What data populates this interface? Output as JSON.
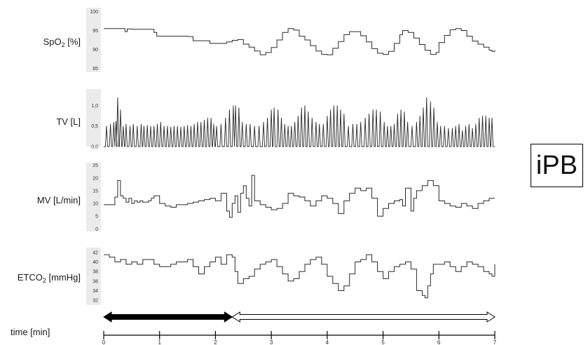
{
  "label_box": "iPB",
  "chart_data": {
    "type": "line",
    "xlabel": "time [min]",
    "xlim": [
      0,
      7
    ],
    "xticks": [
      0,
      1,
      2,
      3,
      4,
      5,
      6,
      7
    ],
    "phase_arrows": [
      {
        "from": 0,
        "to": 2.3,
        "fill": "#000000"
      },
      {
        "from": 2.3,
        "to": 7,
        "fill": "#ffffff"
      }
    ],
    "panels": [
      {
        "name": "spo2",
        "label": "SpO",
        "label_sub": "2",
        "label_rest": " [%]",
        "ylim": [
          84,
          101
        ],
        "yticks": [
          "100",
          "95",
          "90",
          "85"
        ],
        "ytick_values": [
          100,
          95,
          90,
          85
        ],
        "style": "step",
        "series": [
          {
            "x": [
              0,
              0.3,
              0.38,
              0.42,
              0.5,
              0.9,
              0.95,
              1.5,
              1.6,
              1.9,
              2.2,
              2.3,
              2.4,
              2.5,
              2.6,
              2.7,
              2.8,
              2.9,
              3.0,
              3.1,
              3.2,
              3.3,
              3.4,
              3.5,
              3.6,
              3.7,
              3.8,
              3.9,
              4.0,
              4.1,
              4.2,
              4.3,
              4.4,
              4.5,
              4.6,
              4.7,
              4.8,
              4.9,
              5.0,
              5.1,
              5.2,
              5.3,
              5.35,
              5.45,
              5.55,
              5.65,
              5.75,
              5.85,
              5.95,
              6.0,
              6.1,
              6.2,
              6.3,
              6.4,
              6.5,
              6.6,
              6.7,
              6.8,
              6.9,
              6.95,
              7.0
            ],
            "y": [
              95.5,
              95.5,
              94.7,
              95.4,
              95.3,
              94.5,
              93.5,
              93.4,
              92.3,
              91.6,
              92.0,
              92.4,
              92.6,
              91.4,
              90.6,
              89.6,
              88.6,
              89.2,
              90.5,
              92.5,
              94.5,
              95.5,
              95.1,
              93.5,
              92.5,
              91.0,
              89.6,
              88.7,
              88.6,
              90.3,
              92.1,
              93.9,
              94.7,
              94.7,
              93.6,
              92.0,
              90.2,
              89.0,
              88.7,
              89.5,
              91.6,
              93.9,
              95.0,
              94.5,
              93.0,
              91.3,
              89.8,
              88.7,
              89.2,
              91.8,
              93.7,
              95.2,
              95.5,
              95.0,
              93.5,
              92.2,
              91.4,
              90.6,
              89.8,
              89.5,
              89.8
            ]
          }
        ]
      },
      {
        "name": "tv",
        "label": "TV [L]",
        "ylim": [
          0,
          1.4
        ],
        "yticks": [
          "1,0",
          "0,5",
          "0,0"
        ],
        "ytick_values": [
          1.0,
          0.5,
          0.0
        ],
        "style": "spikes",
        "series": [
          {
            "x": [
              0.05,
              0.12,
              0.18,
              0.22,
              0.25,
              0.3,
              0.35,
              0.4,
              0.47,
              0.53,
              0.6,
              0.67,
              0.72,
              0.78,
              0.84,
              0.9,
              0.96,
              1.02,
              1.08,
              1.14,
              1.2,
              1.26,
              1.32,
              1.38,
              1.44,
              1.5,
              1.56,
              1.62,
              1.68,
              1.74,
              1.8,
              1.86,
              1.92,
              1.97,
              2.02,
              2.1,
              2.18,
              2.25,
              2.32,
              2.36,
              2.42,
              2.48,
              2.55,
              2.62,
              2.7,
              2.78,
              2.86,
              2.93,
              3.0,
              3.05,
              3.12,
              3.18,
              3.24,
              3.3,
              3.36,
              3.42,
              3.48,
              3.54,
              3.6,
              3.66,
              3.73,
              3.8,
              3.86,
              3.93,
              4.0,
              4.06,
              4.12,
              4.18,
              4.24,
              4.3,
              4.38,
              4.46,
              4.53,
              4.6,
              4.68,
              4.75,
              4.82,
              4.88,
              4.95,
              5.02,
              5.08,
              5.14,
              5.2,
              5.26,
              5.32,
              5.38,
              5.44,
              5.52,
              5.6,
              5.66,
              5.72,
              5.78,
              5.85,
              5.91,
              5.97,
              6.03,
              6.1,
              6.17,
              6.24,
              6.3,
              6.36,
              6.42,
              6.48,
              6.54,
              6.6,
              6.66,
              6.72,
              6.78,
              6.84,
              6.9,
              6.95
            ],
            "y": [
              0.5,
              0.55,
              0.6,
              0.62,
              1.2,
              0.9,
              0.5,
              0.55,
              0.5,
              0.55,
              0.5,
              0.55,
              0.5,
              0.52,
              0.5,
              0.5,
              0.55,
              0.6,
              0.5,
              0.5,
              0.48,
              0.5,
              0.5,
              0.48,
              0.5,
              0.52,
              0.5,
              0.55,
              0.6,
              0.6,
              0.65,
              0.7,
              0.7,
              0.55,
              0.5,
              0.55,
              0.7,
              0.9,
              1.0,
              1.0,
              0.95,
              0.6,
              0.55,
              0.55,
              0.5,
              0.5,
              0.6,
              0.7,
              0.9,
              0.95,
              0.9,
              0.7,
              0.55,
              0.5,
              0.5,
              0.6,
              0.75,
              0.95,
              1.0,
              0.85,
              0.7,
              0.6,
              0.55,
              0.55,
              0.75,
              0.9,
              1.0,
              1.0,
              0.9,
              0.8,
              0.5,
              0.55,
              0.55,
              0.6,
              0.7,
              0.8,
              0.9,
              0.9,
              0.85,
              0.6,
              0.5,
              0.5,
              0.55,
              0.8,
              0.9,
              0.85,
              0.6,
              0.5,
              0.6,
              0.75,
              0.95,
              1.2,
              1.1,
              0.95,
              0.6,
              0.5,
              0.5,
              0.45,
              0.45,
              0.5,
              0.55,
              0.4,
              0.5,
              0.55,
              0.45,
              0.55,
              0.7,
              0.75,
              0.75,
              0.7,
              0.7
            ]
          }
        ]
      },
      {
        "name": "mv",
        "label": "MV [L/min]",
        "ylim": [
          -1,
          26
        ],
        "yticks": [
          "25",
          "20",
          "15",
          "10",
          "5",
          "0"
        ],
        "ytick_values": [
          25,
          20,
          15,
          10,
          5,
          0
        ],
        "style": "step",
        "series": [
          {
            "x": [
              0,
              0.1,
              0.2,
              0.25,
              0.3,
              0.35,
              0.4,
              0.45,
              0.5,
              0.55,
              0.6,
              0.65,
              0.7,
              0.75,
              0.8,
              0.85,
              0.9,
              1.0,
              1.1,
              1.2,
              1.3,
              1.4,
              1.5,
              1.6,
              1.7,
              1.8,
              1.9,
              2.0,
              2.1,
              2.2,
              2.25,
              2.3,
              2.35,
              2.4,
              2.45,
              2.5,
              2.55,
              2.6,
              2.65,
              2.7,
              2.8,
              2.9,
              3.0,
              3.1,
              3.2,
              3.3,
              3.4,
              3.5,
              3.6,
              3.7,
              3.8,
              3.9,
              4.0,
              4.1,
              4.2,
              4.3,
              4.4,
              4.5,
              4.6,
              4.7,
              4.8,
              4.9,
              5.0,
              5.1,
              5.2,
              5.3,
              5.35,
              5.4,
              5.5,
              5.55,
              5.6,
              5.7,
              5.8,
              5.9,
              6.0,
              6.1,
              6.2,
              6.3,
              6.4,
              6.5,
              6.6,
              6.7,
              6.8,
              6.9,
              7.0
            ],
            "y": [
              9.5,
              9.5,
              12.5,
              19,
              13,
              12,
              10.5,
              12,
              10,
              11,
              10.5,
              11,
              10.5,
              10.5,
              11,
              12,
              13,
              10,
              9,
              8.5,
              9.5,
              9.5,
              10,
              10.5,
              11,
              11.5,
              12,
              11,
              14,
              7,
              4.5,
              10,
              13,
              6.5,
              14,
              17,
              12,
              9,
              21,
              11,
              9.5,
              8.5,
              7.5,
              8,
              10,
              14,
              13,
              12.5,
              11,
              9,
              11,
              13,
              12,
              10,
              6,
              11,
              14,
              16,
              15,
              16,
              12,
              5,
              8,
              10,
              11,
              11.5,
              9,
              16,
              7,
              12,
              15,
              17,
              19,
              17,
              11,
              10,
              9,
              8.5,
              10,
              9,
              8,
              10,
              11,
              12,
              12
            ]
          }
        ]
      },
      {
        "name": "etco2",
        "label": "ETCO",
        "label_sub": "2",
        "label_rest": " [mmHg]",
        "ylim": [
          31,
          43
        ],
        "yticks": [
          "42",
          "40",
          "38",
          "36",
          "34",
          "32"
        ],
        "ytick_values": [
          42,
          40,
          38,
          36,
          34,
          32
        ],
        "style": "step",
        "series": [
          {
            "x": [
              0,
              0.1,
              0.2,
              0.3,
              0.4,
              0.5,
              0.6,
              0.7,
              0.8,
              0.9,
              1.0,
              1.1,
              1.2,
              1.3,
              1.4,
              1.5,
              1.6,
              1.7,
              1.8,
              1.9,
              2.0,
              2.1,
              2.2,
              2.3,
              2.35,
              2.4,
              2.5,
              2.6,
              2.7,
              2.8,
              2.9,
              3.0,
              3.1,
              3.2,
              3.3,
              3.4,
              3.5,
              3.6,
              3.7,
              3.8,
              3.9,
              4.0,
              4.1,
              4.2,
              4.3,
              4.4,
              4.5,
              4.6,
              4.7,
              4.8,
              4.9,
              5.0,
              5.1,
              5.2,
              5.3,
              5.4,
              5.5,
              5.6,
              5.7,
              5.75,
              5.8,
              5.85,
              5.9,
              6.0,
              6.1,
              6.2,
              6.3,
              6.4,
              6.5,
              6.6,
              6.7,
              6.8,
              6.9,
              6.95,
              7.0
            ],
            "y": [
              41.5,
              41,
              40,
              40.5,
              39.5,
              40,
              39.5,
              40.5,
              40.5,
              39.5,
              39,
              39,
              39.5,
              40,
              40,
              40.5,
              39,
              37.5,
              39,
              40,
              41,
              39.5,
              41.5,
              41,
              38,
              35.5,
              36.5,
              37,
              38.5,
              39.5,
              40,
              40.5,
              39,
              37.5,
              36,
              36.5,
              38,
              39.5,
              40.5,
              41,
              39.5,
              37,
              35.5,
              34,
              35,
              37.5,
              40,
              40.5,
              41.5,
              40,
              38,
              36.5,
              38,
              39,
              39.5,
              40,
              38.5,
              34,
              33,
              32.5,
              35,
              37.5,
              39.5,
              39.5,
              40,
              39,
              38,
              39,
              40,
              39.5,
              39,
              38,
              37.5,
              37,
              39.5
            ]
          }
        ]
      }
    ]
  }
}
